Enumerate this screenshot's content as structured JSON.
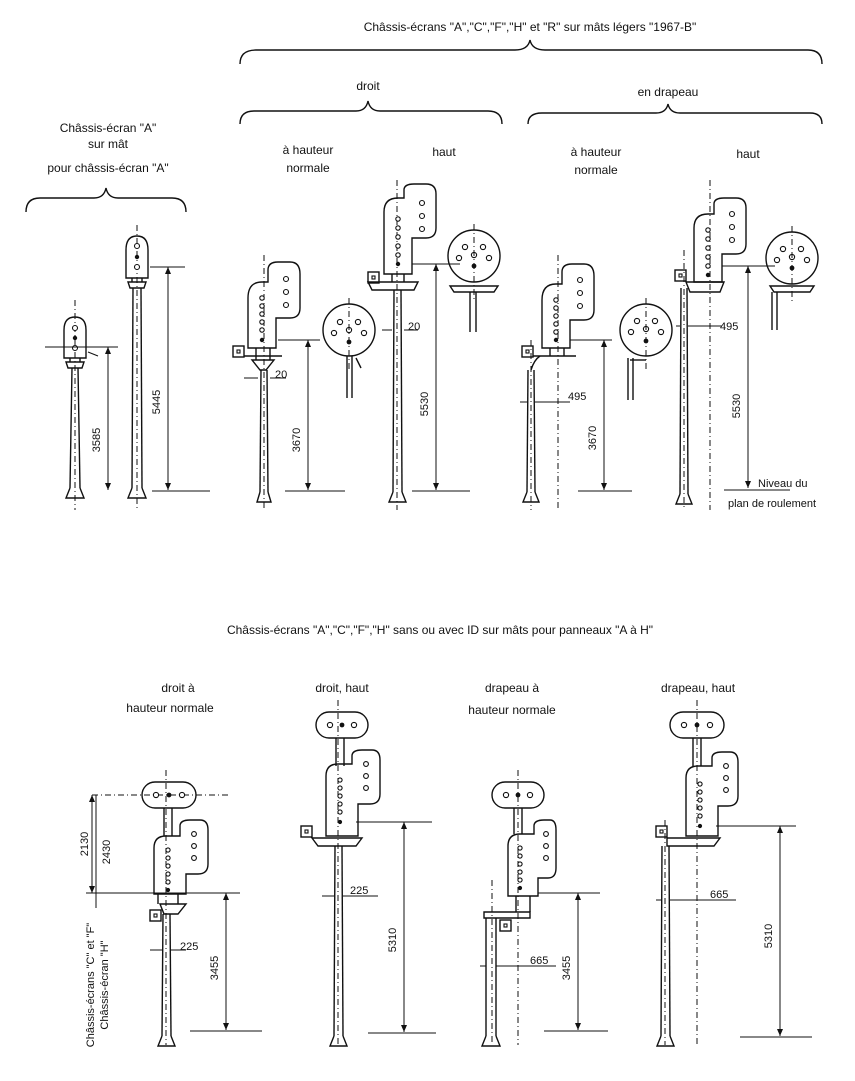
{
  "titles": {
    "top": "Châssis-écrans \"A\",\"C\",\"F\",\"H\" et \"R\" sur mâts légers \"1967-B\"",
    "droit": "droit",
    "drapeau": "en drapeau",
    "bottom": "Châssis-écrans \"A\",\"C\",\"F\",\"H\" sans ou avec ID sur mâts pour panneaux \"A à H\""
  },
  "group_a": [
    "Châssis-écran \"A\"",
    "sur mât",
    "pour châssis-écran \"A\""
  ],
  "top_labels": {
    "droit_normal": [
      "à hauteur",
      "normale"
    ],
    "droit_haut": "haut",
    "drap_normal": [
      "à hauteur",
      "normale"
    ],
    "drap_haut": "haut"
  },
  "ground_label": [
    "Niveau du",
    "plan de roulement"
  ],
  "top_dims": {
    "a_small": "3585",
    "a_tall": "5445",
    "droit_normal_h": "3670",
    "droit_normal_off": "20",
    "droit_haut_h": "5530",
    "droit_haut_off": "20",
    "drap_normal_h": "3670",
    "drap_normal_off": "495",
    "drap_haut_h": "5530",
    "drap_haut_off": "495"
  },
  "bottom_labels": {
    "b1": [
      "droit à",
      "hauteur normale"
    ],
    "b2": "droit, haut",
    "b3": [
      "drapeau à",
      "hauteur normale"
    ],
    "b4": "drapeau, haut"
  },
  "bottom_dims": {
    "b1_top1": "2130",
    "b1_top2": "2430",
    "b1_h": "3455",
    "b1_off": "225",
    "b2_h": "5310",
    "b2_off": "225",
    "b3_h": "3455",
    "b3_off": "665",
    "b4_h": "5310",
    "b4_off": "665"
  },
  "side_labels": [
    "Châssis-écrans \"C\" et \"F\"",
    "Châssis-écran \"H\""
  ]
}
